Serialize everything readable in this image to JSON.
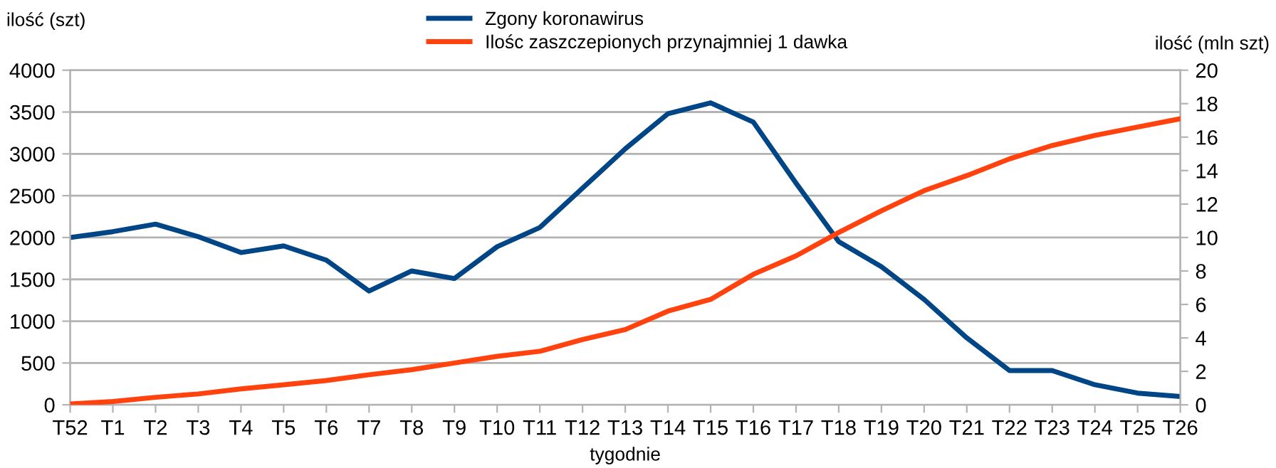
{
  "chart_data": {
    "type": "line",
    "xlabel": "tygodnie",
    "ylabel": "ilość (szt)",
    "y2label": "ilość (mln szt)",
    "categories": [
      "T52",
      "T1",
      "T2",
      "T3",
      "T4",
      "T5",
      "T6",
      "T7",
      "T8",
      "T9",
      "T10",
      "T11",
      "T12",
      "T13",
      "T14",
      "T15",
      "T16",
      "T17",
      "T18",
      "T19",
      "T20",
      "T21",
      "T22",
      "T23",
      "T24",
      "T25",
      "T26"
    ],
    "series": [
      {
        "name": "Zgony koronawirus",
        "color": "#004586",
        "values": [
          2000,
          2070,
          2160,
          2010,
          1820,
          1900,
          1730,
          1360,
          1600,
          1510,
          1890,
          2120,
          2590,
          3060,
          3480,
          3610,
          3380,
          2650,
          1950,
          1650,
          1260,
          800,
          410,
          410,
          240,
          140,
          100
        ]
      },
      {
        "name": "Ilośc zaszczepionych przynajmniej 1 dawka",
        "color": "#ff420e",
        "axis": "y2",
        "values": [
          0.05,
          0.2,
          0.45,
          0.65,
          0.95,
          1.2,
          1.45,
          1.8,
          2.1,
          2.5,
          2.9,
          3.2,
          3.9,
          4.5,
          5.6,
          6.3,
          7.8,
          8.9,
          10.3,
          11.6,
          12.8,
          13.7,
          14.7,
          15.5,
          16.1,
          16.6,
          17.1
        ]
      }
    ],
    "ylim": [
      0,
      4000
    ],
    "yticks": [
      0,
      500,
      1000,
      1500,
      2000,
      2500,
      3000,
      3500,
      4000
    ],
    "y2lim": [
      0,
      20
    ],
    "y2ticks": [
      0,
      2,
      4,
      6,
      8,
      10,
      12,
      14,
      16,
      18,
      20
    ],
    "grid": "y",
    "legend": "top",
    "marker": "none",
    "line_style": "solid"
  }
}
